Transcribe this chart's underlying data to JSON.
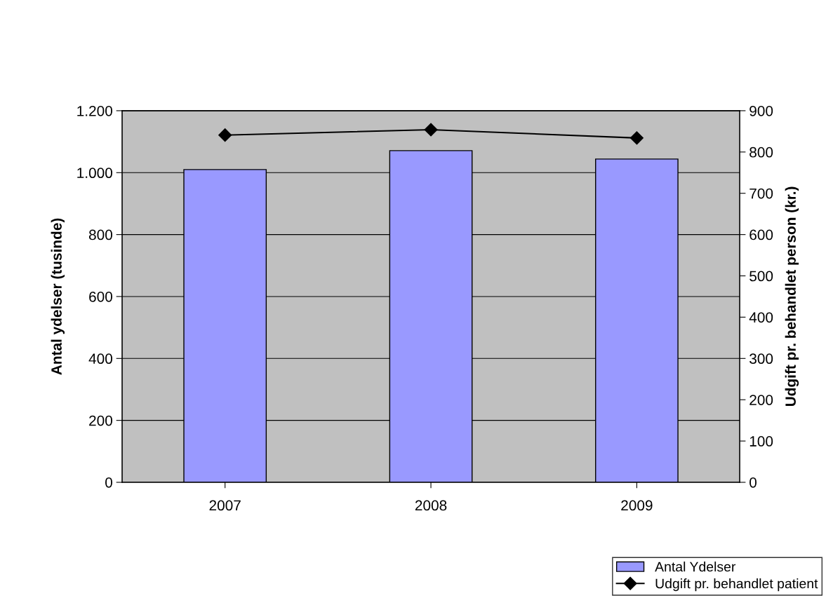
{
  "chart_data": {
    "type": "bar",
    "categories": [
      "2007",
      "2008",
      "2009"
    ],
    "series": [
      {
        "name": "Antal Ydelser",
        "color": "#9999ff",
        "values": [
          1010,
          1071,
          1044
        ]
      },
      {
        "name": "Udgift pr. behandlet patient",
        "type": "line",
        "axis": "y2",
        "color": "#000000",
        "values": [
          841,
          854,
          834
        ],
        "marker": "diamond"
      }
    ],
    "ylabel": "Antal ydelser (tusinde)",
    "y2label": "Udgift pr. behandlet person (kr.)",
    "ylim": [
      0,
      1200
    ],
    "yticks": [
      0,
      200,
      400,
      600,
      800,
      {
        "value": 1000,
        "label": "1.000"
      },
      {
        "value": 1200,
        "label": "1.200"
      }
    ],
    "y2lim": [
      0,
      900
    ],
    "y2ticks": [
      0,
      100,
      200,
      300,
      400,
      500,
      600,
      700,
      800,
      900
    ],
    "grid": "y",
    "legend": "bottom right"
  }
}
